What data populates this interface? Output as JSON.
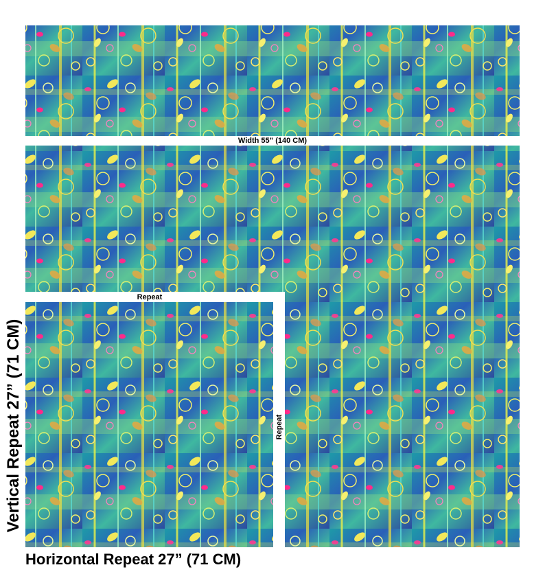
{
  "labels": {
    "width": "Width 55” (140 CM)",
    "repeat_top": "Repeat",
    "repeat_side": "Repeat",
    "vertical_repeat": "Vertical Repeat 27” (71 CM)",
    "horizontal_repeat": "Horizontal Repeat 27” (71 CM)"
  }
}
